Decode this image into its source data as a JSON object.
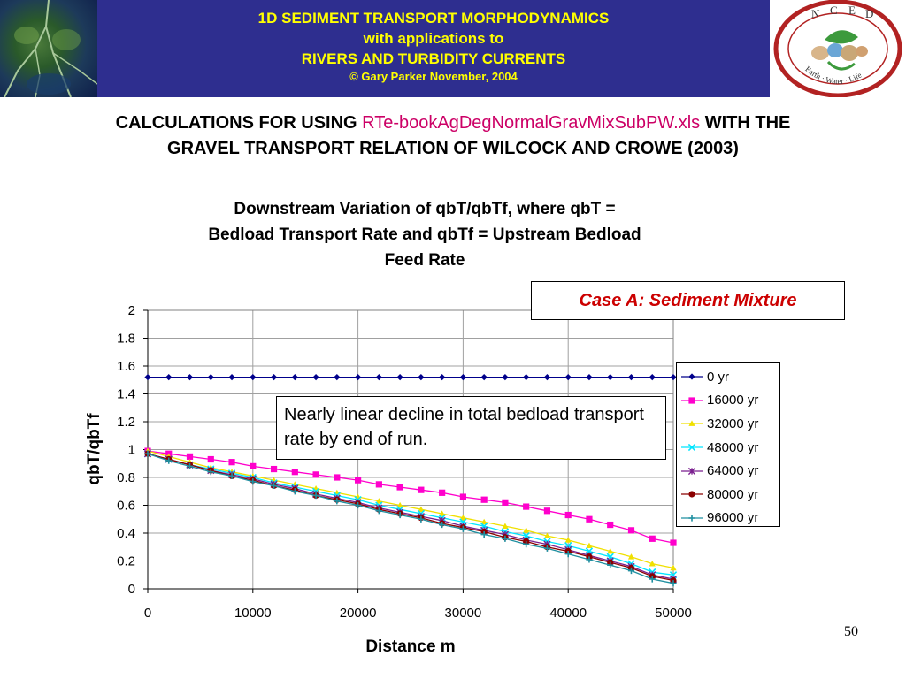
{
  "banner": {
    "line1": "1D SEDIMENT TRANSPORT MORPHODYNAMICS",
    "line2": "with applications to",
    "line3": "RIVERS AND TURBIDITY CURRENTS",
    "copyright": "© Gary Parker November, 2004",
    "logo_letters": [
      "N",
      "C",
      "E",
      "D"
    ],
    "logo_ring_text": "Earth · Water · Life"
  },
  "subtitle": {
    "prefix": "CALCULATIONS FOR USING ",
    "filename": "RTe-bookAgDegNormalGravMixSubPW.xls",
    "suffix": " WITH THE",
    "line2": "GRAVEL TRANSPORT RELATION OF WILCOCK AND CROWE (2003)"
  },
  "case_label": "Case A: Sediment Mixture",
  "note": "Nearly linear decline in total bedload transport rate by end of run.",
  "page_number": "50",
  "colors": {
    "banner_bg": "#2e2e8f",
    "banner_text": "#ffff00",
    "filename": "#cc0066",
    "case_label": "#cc0000"
  },
  "chart_data": {
    "type": "line",
    "title_lines": [
      "Downstream Variation of qbT/qbTf, where qbT =",
      "Bedload Transport Rate and qbTf = Upstream Bedload",
      "Feed Rate"
    ],
    "xlabel": "Distance m",
    "ylabel": "qbT/qbTf",
    "xlim": [
      0,
      50000
    ],
    "ylim": [
      0,
      2
    ],
    "x_ticks": [
      "0",
      "10000",
      "20000",
      "30000",
      "40000",
      "50000"
    ],
    "y_ticks": [
      "0",
      "0.2",
      "0.4",
      "0.6",
      "0.8",
      "1",
      "1.2",
      "1.4",
      "1.6",
      "1.8",
      "2"
    ],
    "grid": true,
    "legend_position": "right",
    "x": [
      0,
      2000,
      4000,
      6000,
      8000,
      10000,
      12000,
      14000,
      16000,
      18000,
      20000,
      22000,
      24000,
      26000,
      28000,
      30000,
      32000,
      34000,
      36000,
      38000,
      40000,
      42000,
      44000,
      46000,
      48000,
      50000
    ],
    "series": [
      {
        "name": "0 yr",
        "color": "#00008b",
        "marker": "diamond",
        "values": [
          1.52,
          1.52,
          1.52,
          1.52,
          1.52,
          1.52,
          1.52,
          1.52,
          1.52,
          1.52,
          1.52,
          1.52,
          1.52,
          1.52,
          1.52,
          1.52,
          1.52,
          1.52,
          1.52,
          1.52,
          1.52,
          1.52,
          1.52,
          1.52,
          1.52,
          1.52
        ]
      },
      {
        "name": "16000 yr",
        "color": "#ff00cc",
        "marker": "square",
        "values": [
          0.99,
          0.97,
          0.95,
          0.93,
          0.91,
          0.88,
          0.86,
          0.84,
          0.82,
          0.8,
          0.78,
          0.75,
          0.73,
          0.71,
          0.69,
          0.66,
          0.64,
          0.62,
          0.59,
          0.56,
          0.53,
          0.5,
          0.46,
          0.42,
          0.36,
          0.33
        ]
      },
      {
        "name": "32000 yr",
        "color": "#f0e000",
        "marker": "triangle",
        "values": [
          0.99,
          0.95,
          0.91,
          0.87,
          0.84,
          0.81,
          0.78,
          0.75,
          0.72,
          0.69,
          0.66,
          0.63,
          0.6,
          0.57,
          0.54,
          0.51,
          0.48,
          0.45,
          0.42,
          0.38,
          0.35,
          0.31,
          0.27,
          0.23,
          0.18,
          0.15
        ]
      },
      {
        "name": "48000 yr",
        "color": "#00e5ff",
        "marker": "x",
        "values": [
          0.97,
          0.93,
          0.89,
          0.86,
          0.83,
          0.8,
          0.76,
          0.73,
          0.7,
          0.67,
          0.64,
          0.6,
          0.57,
          0.54,
          0.51,
          0.48,
          0.45,
          0.41,
          0.38,
          0.34,
          0.31,
          0.27,
          0.23,
          0.18,
          0.12,
          0.1
        ]
      },
      {
        "name": "64000 yr",
        "color": "#7a1f8f",
        "marker": "star",
        "values": [
          0.97,
          0.93,
          0.89,
          0.85,
          0.82,
          0.79,
          0.75,
          0.72,
          0.68,
          0.65,
          0.62,
          0.58,
          0.55,
          0.52,
          0.49,
          0.45,
          0.42,
          0.39,
          0.35,
          0.32,
          0.28,
          0.24,
          0.2,
          0.16,
          0.1,
          0.07
        ]
      },
      {
        "name": "80000 yr",
        "color": "#8b0000",
        "marker": "circle",
        "values": [
          0.97,
          0.93,
          0.89,
          0.85,
          0.81,
          0.78,
          0.74,
          0.71,
          0.67,
          0.64,
          0.61,
          0.57,
          0.54,
          0.51,
          0.47,
          0.44,
          0.41,
          0.37,
          0.34,
          0.3,
          0.27,
          0.23,
          0.19,
          0.15,
          0.09,
          0.06
        ]
      },
      {
        "name": "96000 yr",
        "color": "#1f8fa0",
        "marker": "plus",
        "values": [
          0.97,
          0.92,
          0.88,
          0.84,
          0.81,
          0.77,
          0.74,
          0.7,
          0.67,
          0.63,
          0.6,
          0.56,
          0.53,
          0.5,
          0.46,
          0.43,
          0.39,
          0.36,
          0.32,
          0.29,
          0.25,
          0.21,
          0.17,
          0.13,
          0.07,
          0.04
        ]
      }
    ]
  }
}
